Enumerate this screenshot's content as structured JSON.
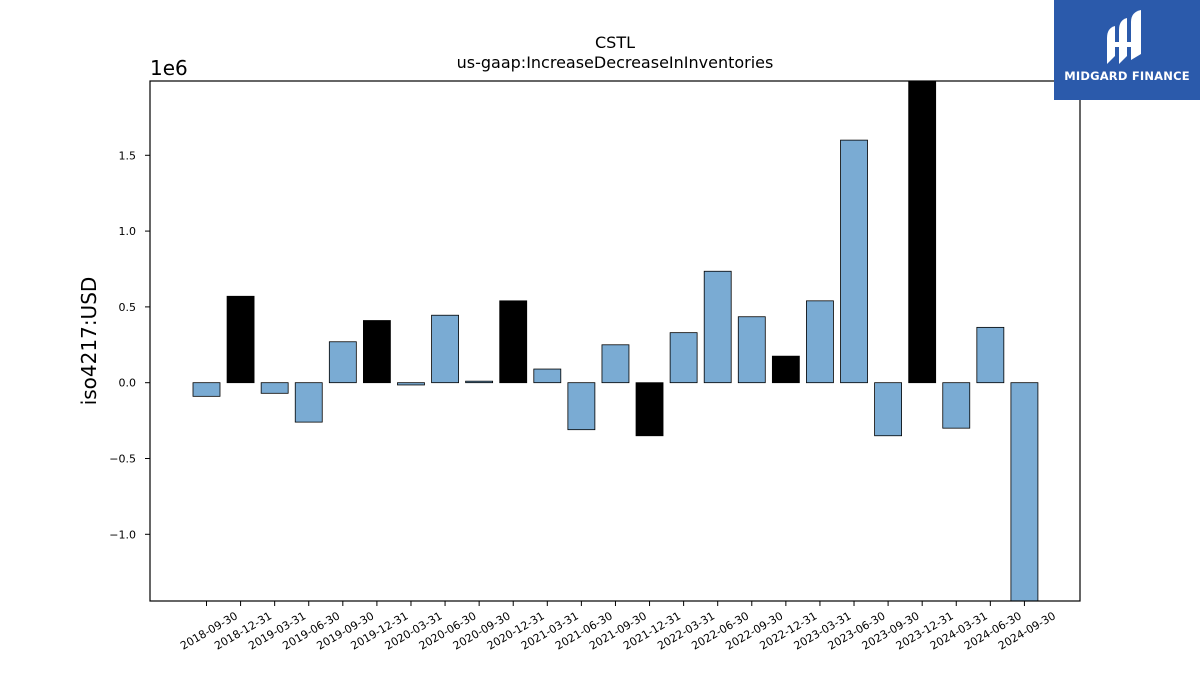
{
  "logo": {
    "text": "MIDGARD FINANCE",
    "icon": "midgard-logo-icon",
    "background": "#2b5aab"
  },
  "chart_data": {
    "type": "bar",
    "title": "CSTL",
    "subtitle": "us-gaap:IncreaseDecreaseInInventories",
    "ylabel": "iso4217:USD",
    "offset_text": "1e6",
    "ylim": [
      -1.44,
      1.99
    ],
    "yticks": [
      -1.0,
      -0.5,
      0.0,
      0.5,
      1.0,
      1.5
    ],
    "ytick_labels": [
      "−1.0",
      "−0.5",
      "0.0",
      "0.5",
      "1.0",
      "1.5"
    ],
    "grid": false,
    "legend": "none",
    "colors": {
      "quarter": "#7aabd3",
      "year_end": "#000000",
      "edge": "#000000"
    },
    "categories": [
      "2018-09-30",
      "2018-12-31",
      "2019-03-31",
      "2019-06-30",
      "2019-09-30",
      "2019-12-31",
      "2020-03-31",
      "2020-06-30",
      "2020-09-30",
      "2020-12-31",
      "2021-03-31",
      "2021-06-30",
      "2021-09-30",
      "2021-12-31",
      "2022-03-31",
      "2022-06-30",
      "2022-09-30",
      "2022-12-31",
      "2023-03-31",
      "2023-06-30",
      "2023-09-30",
      "2023-12-31",
      "2024-03-31",
      "2024-06-30",
      "2024-09-30"
    ],
    "values": [
      -0.09,
      0.57,
      -0.07,
      -0.26,
      0.27,
      0.41,
      -0.015,
      0.445,
      0.01,
      0.54,
      0.09,
      -0.31,
      0.25,
      -0.35,
      0.33,
      0.735,
      0.435,
      0.175,
      0.54,
      1.6,
      -0.35,
      1.99,
      -0.3,
      0.365,
      -1.44
    ],
    "highlight": [
      false,
      true,
      false,
      false,
      false,
      true,
      false,
      false,
      false,
      true,
      false,
      false,
      false,
      true,
      false,
      false,
      false,
      true,
      false,
      false,
      false,
      true,
      false,
      false,
      false
    ]
  }
}
